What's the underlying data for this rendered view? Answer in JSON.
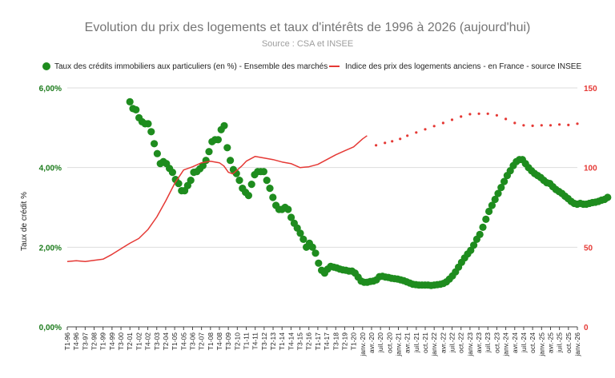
{
  "chart_data": {
    "type": "line",
    "title": "Evolution du prix des logements et taux d'intérêts de 1996 à 2026 (aujourd'hui)",
    "subtitle": "Source : CSA et INSEE",
    "ylabel_left": "Taux de crédit %",
    "left_ticks": [
      "0,00%",
      "2,00%",
      "4,00%",
      "6,00%"
    ],
    "right_ticks": [
      "0",
      "50",
      "100",
      "150"
    ],
    "ylim_left": [
      0,
      6
    ],
    "ylim_right": [
      0,
      150
    ],
    "grid": true,
    "legend_position": "top",
    "x_labels": [
      "T1-96",
      "T4-96",
      "T3-97",
      "T2-98",
      "T1-99",
      "T4-99",
      "T3-00",
      "T2-01",
      "T1-02",
      "T4-02",
      "T3-03",
      "T2-04",
      "T1-05",
      "T4-05",
      "T3-06",
      "T2-07",
      "T1-08",
      "T4-08",
      "T3-09",
      "T2-10",
      "T1-11",
      "T4-11",
      "T3-12",
      "T2-13",
      "T1-14",
      "T4-14",
      "T3-15",
      "T2-16",
      "T1-17",
      "T4-17",
      "T3-18",
      "T2-19",
      "T1-20",
      "janv.-20",
      "avr.-20",
      "juil.-20",
      "oct.-20",
      "janv.-21",
      "avr.-21",
      "juil.-21",
      "oct.-21",
      "janv.-22",
      "avr.-22",
      "juil.-22",
      "oct.-22",
      "janv.-23",
      "avr.-23",
      "juil.-23",
      "oct.-23",
      "janv.-24",
      "avr.-24",
      "juil.-24",
      "oct.-24",
      "janv.-25",
      "avr.-25",
      "juil.-25",
      "oct.-25",
      "janv.-26"
    ],
    "series": [
      {
        "name": "Taux des crédits immobiliers aux particuliers (en %) - Ensemble des marchés",
        "axis": "left",
        "style": "markers",
        "color": "#1e8c1e",
        "x_start": 7.0,
        "x_step": 0.34,
        "values": [
          5.65,
          5.48,
          5.45,
          5.25,
          5.15,
          5.1,
          5.1,
          4.9,
          4.6,
          4.35,
          4.1,
          4.15,
          4.1,
          3.98,
          3.88,
          3.7,
          3.6,
          3.42,
          3.42,
          3.55,
          3.68,
          3.88,
          3.9,
          3.97,
          4.05,
          4.18,
          4.4,
          4.65,
          4.7,
          4.7,
          4.95,
          5.05,
          4.5,
          4.18,
          3.95,
          3.85,
          3.68,
          3.48,
          3.38,
          3.3,
          3.58,
          3.82,
          3.9,
          3.9,
          3.9,
          3.68,
          3.48,
          3.25,
          3.05,
          2.95,
          2.95,
          3.0,
          2.95,
          2.75,
          2.6,
          2.48,
          2.35,
          2.2,
          2.0,
          2.1,
          2.0,
          1.85,
          1.6,
          1.42,
          1.35,
          1.45,
          1.52,
          1.5,
          1.48,
          1.45,
          1.43,
          1.42,
          1.4,
          1.4,
          1.35,
          1.25,
          1.15,
          1.12,
          1.12,
          1.14,
          1.15,
          1.18,
          1.26,
          1.27,
          1.25,
          1.24,
          1.22,
          1.21,
          1.2,
          1.18,
          1.16,
          1.13,
          1.1,
          1.07,
          1.06,
          1.05,
          1.05,
          1.05,
          1.05,
          1.04,
          1.05,
          1.06,
          1.07,
          1.09,
          1.13,
          1.2,
          1.28,
          1.38,
          1.5,
          1.62,
          1.73,
          1.83,
          1.92,
          2.05,
          2.2,
          2.32,
          2.5,
          2.7,
          2.9,
          3.05,
          3.2,
          3.35,
          3.5,
          3.65,
          3.8,
          3.92,
          4.05,
          4.15,
          4.2,
          4.2,
          4.1,
          4.0,
          3.92,
          3.85,
          3.8,
          3.75,
          3.68,
          3.62,
          3.6,
          3.52,
          3.45,
          3.4,
          3.35,
          3.28,
          3.22,
          3.15,
          3.1,
          3.08,
          3.1,
          3.08,
          3.08,
          3.1,
          3.12,
          3.13,
          3.15,
          3.18,
          3.2,
          3.25
        ]
      },
      {
        "name": "Indice des prix des logements anciens - en France - source INSEE",
        "axis": "right",
        "style": "line",
        "color": "#e53935",
        "x": [
          0,
          1,
          2,
          3,
          4,
          5,
          6,
          7,
          8,
          9,
          10,
          11,
          12,
          13,
          14,
          15,
          16,
          17,
          17.5,
          18,
          18.5,
          19,
          19.5,
          20,
          21,
          22,
          23,
          24,
          25,
          26,
          27,
          28,
          29,
          30,
          31,
          32,
          33,
          33.5
        ],
        "values": [
          41,
          41.5,
          41,
          41.8,
          42.5,
          45.5,
          49,
          52.5,
          55.5,
          61,
          69,
          79,
          90,
          98.5,
          100.5,
          103,
          104,
          103,
          101,
          97,
          96,
          98.5,
          101,
          104,
          107,
          106,
          105,
          103.5,
          102.5,
          100,
          100.5,
          102,
          105,
          108,
          110.5,
          113,
          118,
          120
        ]
      },
      {
        "name": "Indice des prix des logements anciens - projection",
        "axis": "right",
        "style": "dots",
        "color": "#e53935",
        "x": [
          34.5,
          35.5,
          36.3,
          37.2,
          38,
          39,
          40,
          41,
          42,
          43,
          44,
          45,
          46,
          47,
          48,
          49,
          50,
          51,
          52,
          53,
          54,
          55,
          56,
          57
        ],
        "values": [
          114,
          115.5,
          116.5,
          118,
          120,
          122,
          124,
          126,
          128,
          130,
          132,
          133.5,
          133.8,
          133.8,
          132.8,
          130.5,
          128,
          126.5,
          126.2,
          126.5,
          126.5,
          127,
          126.7,
          127.5
        ]
      }
    ]
  }
}
